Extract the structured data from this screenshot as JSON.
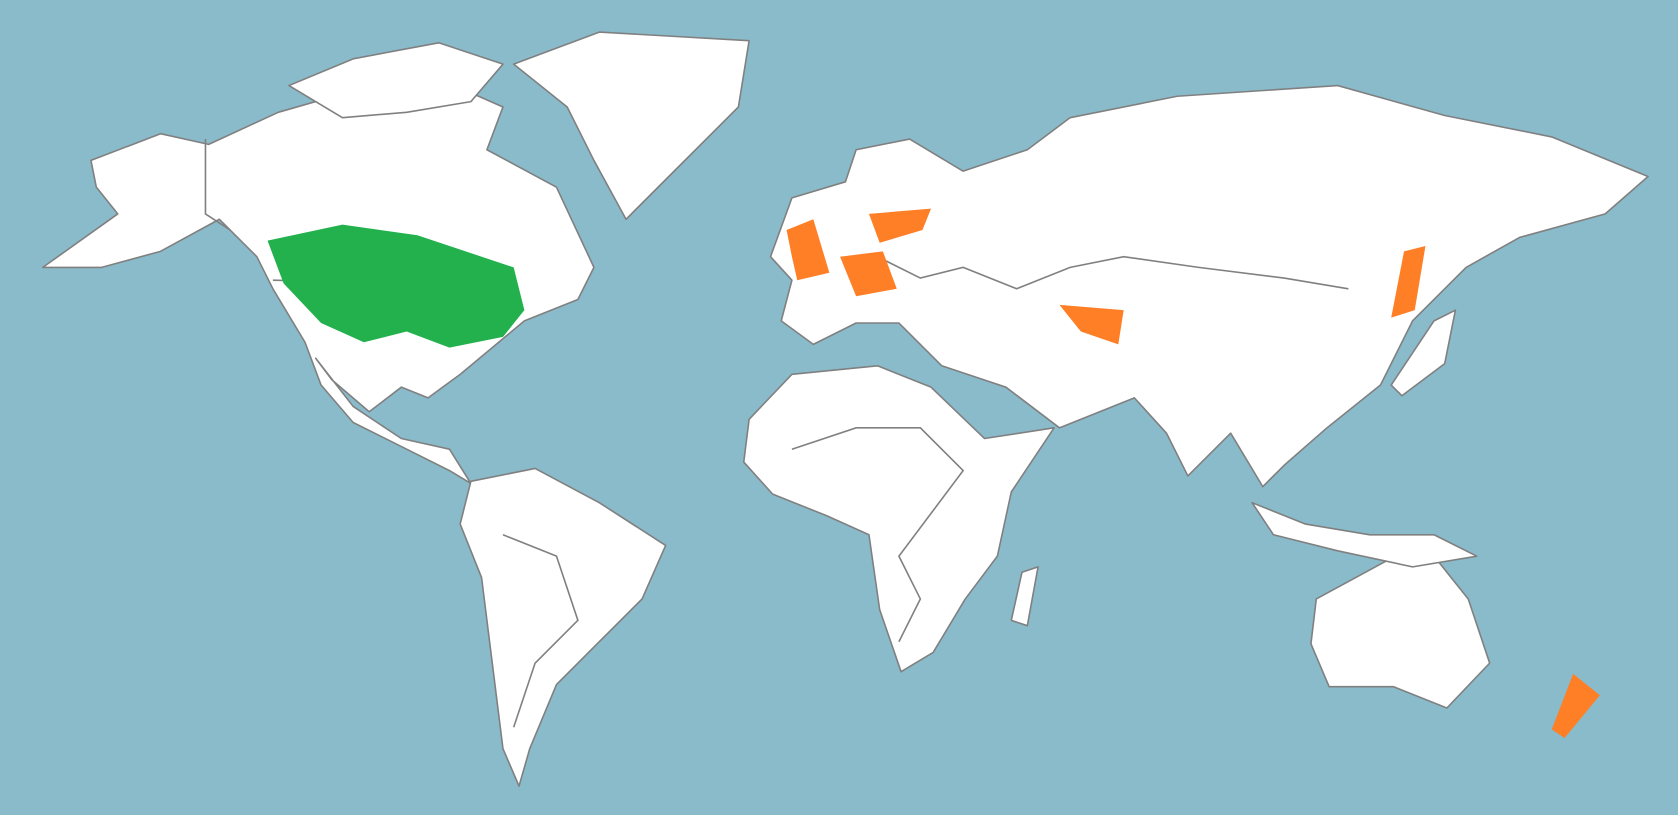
{
  "map": {
    "projection": "equirectangular-world",
    "colors": {
      "ocean": "#8abbcb",
      "land": "#ffffff",
      "borders": "#808080",
      "native_range": "#22b14c",
      "introduced_range": "#ff7f27"
    },
    "highlighted_regions": [
      {
        "region": "north-america-central-band",
        "category": "native_range"
      },
      {
        "region": "united-kingdom",
        "category": "introduced_range"
      },
      {
        "region": "germany-czechia",
        "category": "introduced_range"
      },
      {
        "region": "southern-sweden-finland",
        "category": "introduced_range"
      },
      {
        "region": "uzbekistan",
        "category": "introduced_range"
      },
      {
        "region": "russian-far-east",
        "category": "introduced_range"
      },
      {
        "region": "new-zealand",
        "category": "introduced_range"
      }
    ]
  }
}
